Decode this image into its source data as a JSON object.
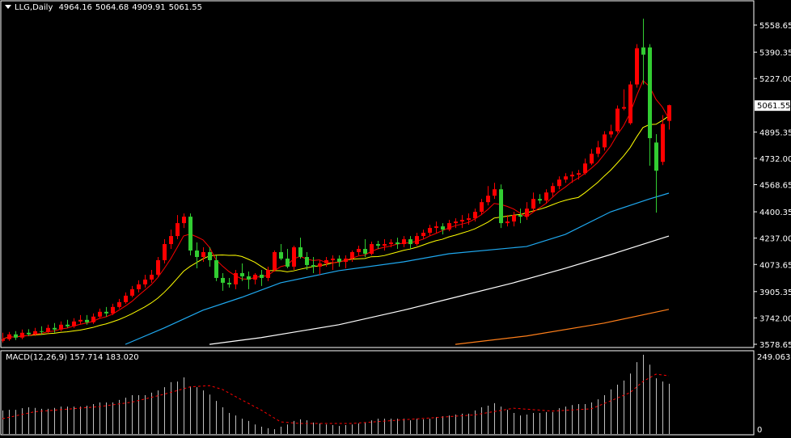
{
  "header": {
    "symbol": "LLG,Daily",
    "open": "4964.16",
    "high": "5064.68",
    "low": "4909.91",
    "close": "5061.55"
  },
  "macd_label": {
    "name": "MACD(12,26,9)",
    "main": "157.714",
    "signal": "183.020"
  },
  "colors": {
    "background": "#000000",
    "bull": "#ff0000",
    "bear": "#32cd32",
    "ma_fast": "#ff0000",
    "ma_slow": "#ffff00",
    "ma_blue": "#1fa9f0",
    "ma_white": "#ffffff",
    "ma_orange": "#ff7f1a",
    "macd_hist": "#c0c0c0",
    "macd_signal": "#ff0000",
    "axis": "#ffffff"
  },
  "chart_data": [
    {
      "type": "candlestick",
      "price_axis": {
        "ticks": [
          "5558.65",
          "5390.35",
          "5227.00",
          "4895.35",
          "4732.00",
          "4568.65",
          "4400.35",
          "4237.00",
          "4073.65",
          "3905.35",
          "3742.00",
          "3578.65"
        ],
        "ylim": [
          3578.65,
          5558.65
        ],
        "current_price": "5061.55"
      },
      "ohlc": [
        [
          3600,
          3650,
          3590,
          3610
        ],
        [
          3610,
          3655,
          3600,
          3640
        ],
        [
          3640,
          3660,
          3605,
          3620
        ],
        [
          3620,
          3670,
          3610,
          3650
        ],
        [
          3650,
          3672,
          3630,
          3640
        ],
        [
          3640,
          3680,
          3630,
          3660
        ],
        [
          3660,
          3690,
          3640,
          3655
        ],
        [
          3655,
          3700,
          3645,
          3680
        ],
        [
          3680,
          3710,
          3650,
          3670
        ],
        [
          3670,
          3720,
          3660,
          3700
        ],
        [
          3700,
          3730,
          3680,
          3690
        ],
        [
          3690,
          3740,
          3680,
          3720
        ],
        [
          3720,
          3760,
          3705,
          3730
        ],
        [
          3730,
          3760,
          3700,
          3715
        ],
        [
          3715,
          3770,
          3705,
          3750
        ],
        [
          3750,
          3800,
          3740,
          3780
        ],
        [
          3780,
          3810,
          3750,
          3770
        ],
        [
          3770,
          3830,
          3760,
          3810
        ],
        [
          3810,
          3860,
          3800,
          3840
        ],
        [
          3840,
          3900,
          3830,
          3880
        ],
        [
          3880,
          3940,
          3870,
          3920
        ],
        [
          3920,
          3975,
          3900,
          3950
        ],
        [
          3950,
          4010,
          3930,
          3980
        ],
        [
          3980,
          4040,
          3960,
          4010
        ],
        [
          4010,
          4120,
          4000,
          4100
        ],
        [
          4100,
          4230,
          4080,
          4200
        ],
        [
          4200,
          4290,
          4170,
          4250
        ],
        [
          4250,
          4380,
          4230,
          4330
        ],
        [
          4330,
          4390,
          4300,
          4370
        ],
        [
          4370,
          4390,
          4130,
          4160
        ],
        [
          4160,
          4210,
          4050,
          4120
        ],
        [
          4120,
          4180,
          4090,
          4150
        ],
        [
          4150,
          4180,
          4060,
          4100
        ],
        [
          4100,
          4130,
          3970,
          3990
        ],
        [
          3990,
          4020,
          3910,
          3960
        ],
        [
          3960,
          3990,
          3930,
          3950
        ],
        [
          3950,
          4040,
          3920,
          4020
        ],
        [
          4020,
          4080,
          3970,
          4000
        ],
        [
          4000,
          4030,
          3920,
          3980
        ],
        [
          3980,
          4020,
          3950,
          4010
        ],
        [
          4010,
          4040,
          3940,
          3990
        ],
        [
          3990,
          4060,
          3970,
          4040
        ],
        [
          4040,
          4160,
          4030,
          4150
        ],
        [
          4150,
          4200,
          4100,
          4110
        ],
        [
          4110,
          4170,
          4050,
          4060
        ],
        [
          4060,
          4190,
          4040,
          4180
        ],
        [
          4180,
          4240,
          4110,
          4120
        ],
        [
          4120,
          4150,
          4040,
          4070
        ],
        [
          4070,
          4120,
          4020,
          4060
        ],
        [
          4060,
          4100,
          4010,
          4080
        ],
        [
          4080,
          4120,
          4060,
          4100
        ],
        [
          4100,
          4130,
          4040,
          4110
        ],
        [
          4110,
          4130,
          4060,
          4090
        ],
        [
          4090,
          4130,
          4050,
          4110
        ],
        [
          4110,
          4160,
          4090,
          4150
        ],
        [
          4150,
          4190,
          4130,
          4170
        ],
        [
          4170,
          4230,
          4120,
          4140
        ],
        [
          4140,
          4215,
          4130,
          4200
        ],
        [
          4200,
          4220,
          4170,
          4190
        ],
        [
          4190,
          4230,
          4160,
          4200
        ],
        [
          4200,
          4230,
          4180,
          4210
        ],
        [
          4210,
          4240,
          4170,
          4200
        ],
        [
          4200,
          4250,
          4180,
          4230
        ],
        [
          4230,
          4250,
          4170,
          4200
        ],
        [
          4200,
          4270,
          4190,
          4250
        ],
        [
          4250,
          4290,
          4230,
          4270
        ],
        [
          4270,
          4320,
          4250,
          4300
        ],
        [
          4300,
          4340,
          4270,
          4310
        ],
        [
          4310,
          4330,
          4260,
          4290
        ],
        [
          4290,
          4350,
          4280,
          4330
        ],
        [
          4330,
          4360,
          4300,
          4340
        ],
        [
          4340,
          4380,
          4300,
          4350
        ],
        [
          4350,
          4390,
          4320,
          4360
        ],
        [
          4360,
          4420,
          4340,
          4400
        ],
        [
          4400,
          4480,
          4380,
          4460
        ],
        [
          4460,
          4560,
          4440,
          4500
        ],
        [
          4500,
          4580,
          4480,
          4540
        ],
        [
          4540,
          4570,
          4300,
          4330
        ],
        [
          4330,
          4380,
          4310,
          4340
        ],
        [
          4340,
          4400,
          4310,
          4380
        ],
        [
          4380,
          4420,
          4330,
          4370
        ],
        [
          4370,
          4460,
          4350,
          4420
        ],
        [
          4420,
          4520,
          4400,
          4480
        ],
        [
          4480,
          4510,
          4450,
          4470
        ],
        [
          4470,
          4540,
          4450,
          4520
        ],
        [
          4520,
          4580,
          4490,
          4560
        ],
        [
          4560,
          4620,
          4540,
          4600
        ],
        [
          4600,
          4640,
          4580,
          4620
        ],
        [
          4620,
          4650,
          4580,
          4630
        ],
        [
          4630,
          4660,
          4600,
          4640
        ],
        [
          4640,
          4730,
          4630,
          4700
        ],
        [
          4700,
          4790,
          4690,
          4760
        ],
        [
          4760,
          4840,
          4740,
          4800
        ],
        [
          4800,
          4900,
          4780,
          4880
        ],
        [
          4880,
          4940,
          4860,
          4900
        ],
        [
          4900,
          5060,
          4890,
          5040
        ],
        [
          5040,
          5160,
          5030,
          5050
        ],
        [
          4950,
          5210,
          4940,
          5190
        ],
        [
          5190,
          5440,
          5170,
          5415
        ],
        [
          5420,
          5598,
          5190,
          5375
        ],
        [
          5420,
          5440,
          4686,
          4857
        ],
        [
          4830,
          4882,
          4395,
          4655
        ],
        [
          4710,
          5000,
          4690,
          4945
        ],
        [
          4964.16,
          5064.68,
          4909.91,
          5061.55
        ]
      ],
      "moving_averages": [
        {
          "color": "#1fa9f0",
          "points": [
            [
              20,
              3578
            ],
            [
              26,
              3680
            ],
            [
              32,
              3790
            ],
            [
              38,
              3870
            ],
            [
              44,
              3960
            ],
            [
              53,
              4035
            ],
            [
              63,
              4090
            ],
            [
              70,
              4140
            ],
            [
              82,
              4185
            ],
            [
              88,
              4260
            ],
            [
              95,
              4400
            ],
            [
              101,
              4480
            ],
            [
              104,
              4516
            ]
          ]
        },
        {
          "color": "#ffffff",
          "points": [
            [
              33,
              3578
            ],
            [
              41,
              3620
            ],
            [
              53,
              3700
            ],
            [
              63,
              3790
            ],
            [
              71,
              3870
            ],
            [
              80,
              3960
            ],
            [
              88,
              4050
            ],
            [
              95,
              4135
            ],
            [
              104,
              4250
            ]
          ]
        },
        {
          "color": "#ff7f1a",
          "points": [
            [
              71,
              3578
            ],
            [
              82,
              3630
            ],
            [
              94,
              3710
            ],
            [
              104,
              3795
            ]
          ]
        }
      ]
    },
    {
      "type": "bar",
      "name": "MACD(12,26,9)",
      "ylim": [
        0,
        249.063
      ],
      "ticks": [
        "249.063",
        "0"
      ],
      "histogram": [
        74,
        76,
        76,
        81,
        84,
        82,
        79,
        79,
        82,
        86,
        86,
        86,
        86,
        89,
        94,
        99,
        99,
        99,
        107,
        114,
        122,
        122,
        122,
        130,
        137,
        147,
        163,
        165,
        178,
        150,
        147,
        137,
        124,
        104,
        84,
        66,
        58,
        48,
        41,
        30,
        23,
        18,
        15,
        23,
        30,
        41,
        46,
        43,
        36,
        33,
        30,
        28,
        25,
        28,
        30,
        33,
        36,
        43,
        48,
        48,
        48,
        48,
        48,
        43,
        48,
        46,
        48,
        53,
        56,
        58,
        61,
        64,
        64,
        74,
        84,
        89,
        97,
        86,
        76,
        66,
        58,
        61,
        66,
        66,
        69,
        69,
        81,
        86,
        91,
        94,
        94,
        99,
        109,
        122,
        140,
        155,
        168,
        190,
        226,
        249,
        218,
        175,
        165,
        158
      ],
      "signal": [
        [
          1,
          48
        ],
        [
          6,
          70
        ],
        [
          11,
          78
        ],
        [
          16,
          86
        ],
        [
          21,
          100
        ],
        [
          26,
          125
        ],
        [
          30,
          148
        ],
        [
          33,
          152
        ],
        [
          35,
          140
        ],
        [
          38,
          107
        ],
        [
          41,
          75
        ],
        [
          44,
          38
        ],
        [
          47,
          33
        ],
        [
          55,
          33
        ],
        [
          64,
          46
        ],
        [
          74,
          60
        ],
        [
          80,
          81
        ],
        [
          86,
          72
        ],
        [
          92,
          79
        ],
        [
          95,
          104
        ],
        [
          98,
          130
        ],
        [
          100,
          165
        ],
        [
          102,
          188
        ],
        [
          104,
          183
        ]
      ]
    }
  ]
}
